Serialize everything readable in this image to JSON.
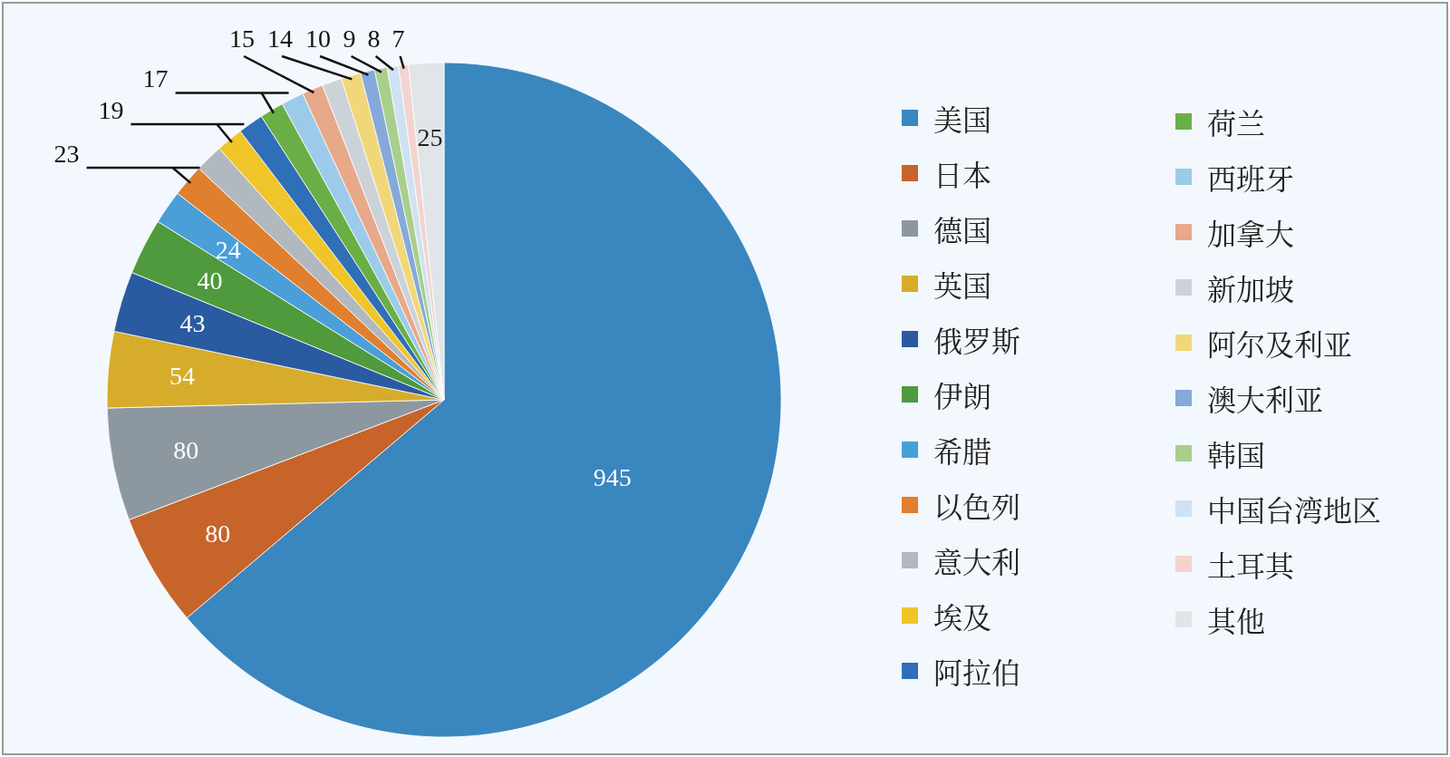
{
  "chart_data": {
    "type": "pie",
    "legend": "right",
    "categories": [
      "美国",
      "日本",
      "德国",
      "英国",
      "俄罗斯",
      "伊朗",
      "希腊",
      "以色列",
      "意大利",
      "埃及",
      "阿拉伯",
      "荷兰",
      "西班牙",
      "加拿大",
      "新加坡",
      "阿尔及利亚",
      "澳大利亚",
      "韩国",
      "中国台湾地区",
      "土耳其",
      "其他"
    ],
    "values": [
      945,
      80,
      80,
      54,
      43,
      40,
      24,
      23,
      20,
      19,
      18,
      17,
      16,
      15,
      14,
      14,
      10,
      9,
      8,
      7,
      25
    ],
    "value_labels": [
      "945",
      "80",
      "80",
      "54",
      "43",
      "40",
      "24",
      "23",
      null,
      "19",
      null,
      "17",
      null,
      "15",
      null,
      "14",
      "10",
      "9",
      "8",
      "7",
      "25"
    ],
    "colors": [
      "#3a86bf",
      "#c6642a",
      "#8c979f",
      "#d6ac2a",
      "#2a5aa0",
      "#4e9a3c",
      "#4a9fd8",
      "#e07f2e",
      "#b1b9bf",
      "#f0c52a",
      "#2e6fb8",
      "#6aaf45",
      "#9ccbea",
      "#e8a88a",
      "#ccd3d8",
      "#f2d77a",
      "#85a9d9",
      "#a8cf8c",
      "#cfe2f3",
      "#f2d4cf",
      "#e0e5e8"
    ]
  }
}
